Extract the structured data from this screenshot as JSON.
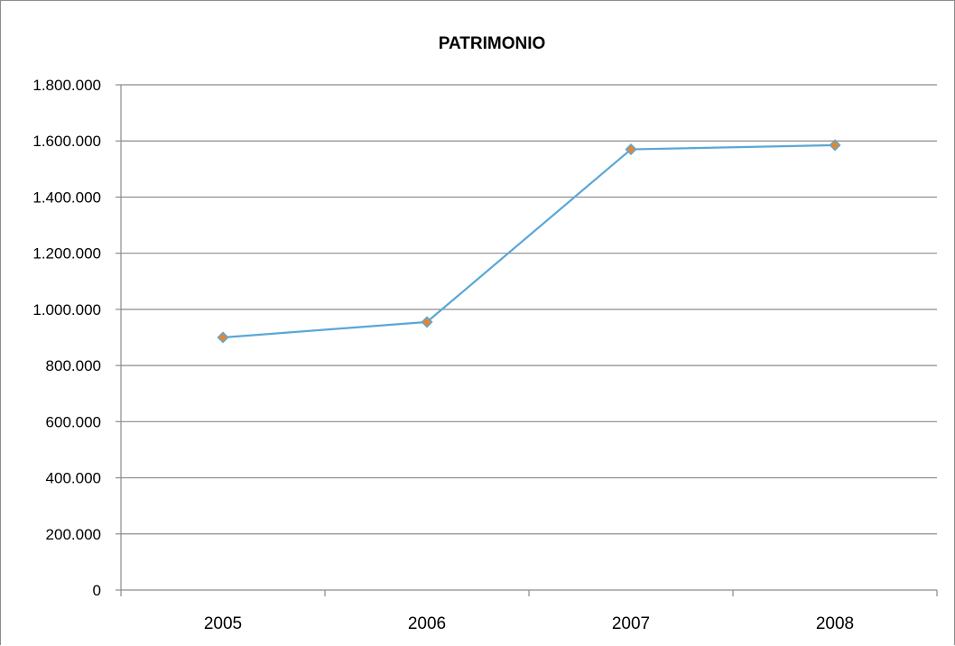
{
  "chart_data": {
    "type": "line",
    "title": "PATRIMONIO",
    "xlabel": "",
    "ylabel": "",
    "categories": [
      "2005",
      "2006",
      "2007",
      "2008"
    ],
    "series": [
      {
        "values": [
          900000,
          955000,
          1570000,
          1585000
        ]
      }
    ],
    "ylim": [
      0,
      1800000
    ],
    "y_ticks": [
      0,
      200000,
      400000,
      600000,
      800000,
      1000000,
      1200000,
      1400000,
      1600000,
      1800000
    ],
    "y_tick_labels": [
      "0",
      "200.000",
      "400.000",
      "600.000",
      "800.000",
      "1.000.000",
      "1.200.000",
      "1.400.000",
      "1.600.000",
      "1.800.000"
    ],
    "grid": true,
    "legend": "none",
    "colors": {
      "line": "#5aa7d6",
      "marker_fill": "#e8862a",
      "marker_stroke": "#5aa7d6",
      "gridline": "#8c8c8c",
      "axis": "#8c8c8c"
    }
  }
}
